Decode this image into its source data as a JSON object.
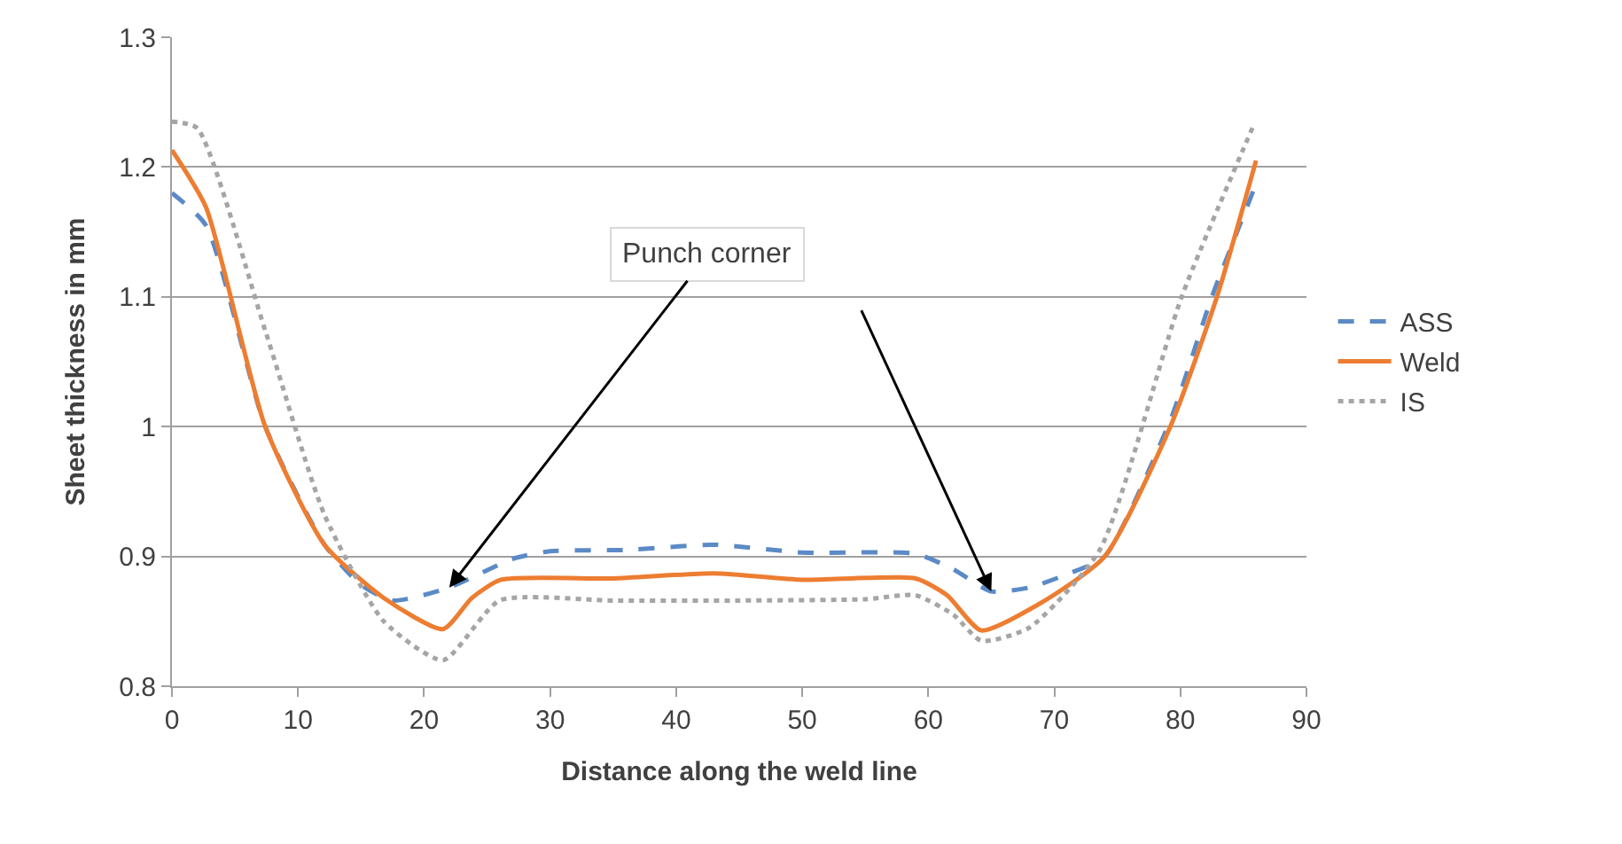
{
  "chart_data": {
    "type": "line",
    "xlabel": "Distance along the weld line",
    "ylabel": "Sheet thickness in mm",
    "xlim": [
      0,
      90
    ],
    "xticks": [
      0,
      10,
      20,
      30,
      40,
      50,
      60,
      70,
      80,
      90
    ],
    "ylim": [
      0.8,
      1.3
    ],
    "yticks": [
      0.8,
      0.9,
      1,
      1.1,
      1.2,
      1.3
    ],
    "grid": "y",
    "legend": "right",
    "marker": "none",
    "annotations": [
      {
        "text": "Punch corner",
        "x": 22,
        "y": 0.876
      }
    ],
    "series": [
      {
        "name": "ASS",
        "color": "#5b8ac6",
        "line_style": "dashed",
        "x": [
          0,
          2.7,
          7.4,
          12.1,
          15,
          17.5,
          22,
          27,
          30,
          36,
          43,
          50,
          59,
          62,
          65,
          68,
          71.2,
          74,
          79.2,
          82.5,
          85.8
        ],
        "values": [
          1.18,
          1.155,
          1.0,
          0.909,
          0.878,
          0.866,
          0.876,
          0.898,
          0.904,
          0.905,
          0.909,
          0.903,
          0.902,
          0.89,
          0.873,
          0.876,
          0.887,
          0.9,
          1.005,
          1.1,
          1.182
        ]
      },
      {
        "name": "Weld",
        "color": "#ed7d31",
        "line_style": "solid",
        "x": [
          0,
          2.7,
          7.4,
          12.1,
          16.8,
          21.5,
          23.8,
          26.1,
          35,
          43,
          50,
          59,
          61.5,
          64.2,
          68.9,
          74,
          79.2,
          82.9,
          86
        ],
        "values": [
          1.213,
          1.169,
          1.0,
          0.909,
          0.868,
          0.844,
          0.868,
          0.882,
          0.883,
          0.887,
          0.882,
          0.883,
          0.87,
          0.843,
          0.864,
          0.9,
          1.0,
          1.1,
          1.205
        ]
      },
      {
        "name": "IS",
        "color": "#a5a5a5",
        "line_style": "dotted",
        "x": [
          0,
          2,
          7.4,
          12.1,
          16.8,
          21.5,
          26,
          35,
          45,
          55,
          59,
          62,
          64.2,
          68,
          73.6,
          80.1,
          85.8
        ],
        "values": [
          1.235,
          1.23,
          1.074,
          0.932,
          0.85,
          0.82,
          0.866,
          0.866,
          0.866,
          0.867,
          0.87,
          0.855,
          0.835,
          0.845,
          0.905,
          1.1,
          1.232
        ]
      }
    ]
  }
}
